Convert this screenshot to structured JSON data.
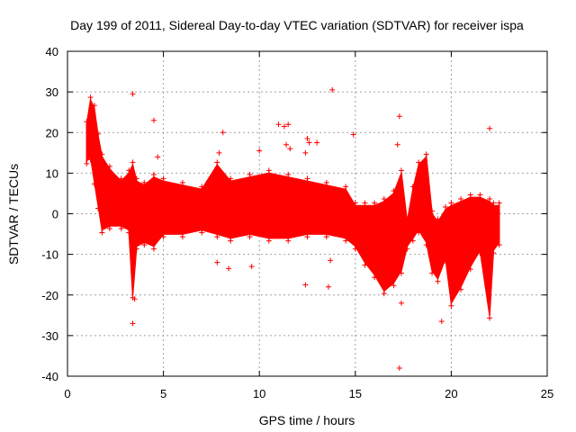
{
  "chart_data": {
    "type": "scatter",
    "title": "Day 199 of 2011, Sidereal Day-to-day VTEC variation (SDTVAR) for receiver ispa",
    "xlabel": "GPS time / hours",
    "ylabel": "SDTVAR / TECUs",
    "xlim": [
      0,
      25
    ],
    "ylim": [
      -40,
      40
    ],
    "x_ticks": [
      0,
      5,
      10,
      15,
      20,
      25
    ],
    "y_ticks": [
      -40,
      -30,
      -20,
      -10,
      0,
      10,
      20,
      30,
      40
    ],
    "grid": true,
    "marker": "+",
    "series_color": "#ff0000",
    "band": [
      {
        "x": 1.0,
        "lo": 13,
        "hi": 22
      },
      {
        "x": 1.2,
        "lo": 14,
        "hi": 28
      },
      {
        "x": 1.4,
        "lo": 8,
        "hi": 26
      },
      {
        "x": 1.6,
        "lo": 2,
        "hi": 19
      },
      {
        "x": 1.8,
        "lo": -4,
        "hi": 14
      },
      {
        "x": 2.2,
        "lo": -3,
        "hi": 11
      },
      {
        "x": 2.8,
        "lo": -3,
        "hi": 8
      },
      {
        "x": 3.2,
        "lo": -4,
        "hi": 10
      },
      {
        "x": 3.4,
        "lo": -20,
        "hi": 12
      },
      {
        "x": 3.6,
        "lo": -8,
        "hi": 8
      },
      {
        "x": 4.0,
        "lo": -7,
        "hi": 7
      },
      {
        "x": 4.5,
        "lo": -8,
        "hi": 9
      },
      {
        "x": 5.0,
        "lo": -5,
        "hi": 8
      },
      {
        "x": 6.0,
        "lo": -5,
        "hi": 7
      },
      {
        "x": 7.0,
        "lo": -4,
        "hi": 6
      },
      {
        "x": 7.8,
        "lo": -5,
        "hi": 12
      },
      {
        "x": 8.5,
        "lo": -6,
        "hi": 8
      },
      {
        "x": 9.5,
        "lo": -5,
        "hi": 9
      },
      {
        "x": 10.5,
        "lo": -6,
        "hi": 10
      },
      {
        "x": 11.5,
        "lo": -6,
        "hi": 9
      },
      {
        "x": 12.5,
        "lo": -5,
        "hi": 8
      },
      {
        "x": 13.5,
        "lo": -5,
        "hi": 7
      },
      {
        "x": 14.5,
        "lo": -6,
        "hi": 6
      },
      {
        "x": 15.0,
        "lo": -8,
        "hi": 2
      },
      {
        "x": 15.5,
        "lo": -12,
        "hi": 2
      },
      {
        "x": 16.0,
        "lo": -15,
        "hi": 2
      },
      {
        "x": 16.5,
        "lo": -19,
        "hi": 3
      },
      {
        "x": 17.0,
        "lo": -17,
        "hi": 5
      },
      {
        "x": 17.4,
        "lo": -14,
        "hi": 10
      },
      {
        "x": 17.7,
        "lo": -8,
        "hi": -2
      },
      {
        "x": 18.0,
        "lo": -6,
        "hi": 6
      },
      {
        "x": 18.3,
        "lo": -4,
        "hi": 12
      },
      {
        "x": 18.7,
        "lo": -7,
        "hi": 14
      },
      {
        "x": 19.0,
        "lo": -14,
        "hi": 0
      },
      {
        "x": 19.3,
        "lo": -16,
        "hi": -2
      },
      {
        "x": 19.7,
        "lo": -11,
        "hi": 1
      },
      {
        "x": 20.0,
        "lo": -22,
        "hi": 2
      },
      {
        "x": 20.5,
        "lo": -18,
        "hi": 3
      },
      {
        "x": 21.0,
        "lo": -13,
        "hi": 4
      },
      {
        "x": 21.5,
        "lo": -9,
        "hi": 4
      },
      {
        "x": 22.0,
        "lo": -25,
        "hi": 3
      },
      {
        "x": 22.2,
        "lo": -9,
        "hi": 2
      },
      {
        "x": 22.5,
        "lo": -7,
        "hi": 2
      }
    ],
    "outliers": [
      {
        "x": 3.4,
        "y": 29.5
      },
      {
        "x": 4.5,
        "y": 23
      },
      {
        "x": 4.7,
        "y": 14
      },
      {
        "x": 7.9,
        "y": 15
      },
      {
        "x": 8.1,
        "y": 20
      },
      {
        "x": 10.0,
        "y": 15.5
      },
      {
        "x": 11.0,
        "y": 22
      },
      {
        "x": 11.3,
        "y": 21.5
      },
      {
        "x": 11.5,
        "y": 22
      },
      {
        "x": 11.4,
        "y": 17
      },
      {
        "x": 11.6,
        "y": 16
      },
      {
        "x": 12.4,
        "y": 15
      },
      {
        "x": 12.5,
        "y": 18.5
      },
      {
        "x": 12.6,
        "y": 17.5
      },
      {
        "x": 13.0,
        "y": 17.5
      },
      {
        "x": 13.8,
        "y": 30.5
      },
      {
        "x": 14.9,
        "y": 19.5
      },
      {
        "x": 17.3,
        "y": 24
      },
      {
        "x": 17.2,
        "y": 17
      },
      {
        "x": 22.0,
        "y": 21
      },
      {
        "x": 12.4,
        "y": -17.5
      },
      {
        "x": 13.6,
        "y": -18
      },
      {
        "x": 13.7,
        "y": -11.5
      },
      {
        "x": 7.8,
        "y": -12
      },
      {
        "x": 8.4,
        "y": -13.5
      },
      {
        "x": 9.6,
        "y": -13
      },
      {
        "x": 17.3,
        "y": -38
      },
      {
        "x": 17.4,
        "y": -22
      },
      {
        "x": 19.5,
        "y": -26.5
      },
      {
        "x": 3.4,
        "y": -27
      },
      {
        "x": 3.5,
        "y": -21
      }
    ]
  }
}
